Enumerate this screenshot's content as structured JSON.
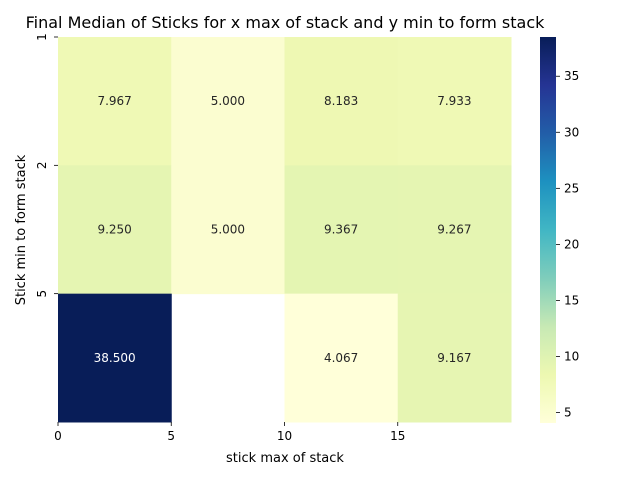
{
  "chart_data": {
    "type": "heatmap",
    "title": "Final Median of Sticks for x max of stack and y min to form stack",
    "xlabel": "stick max of stack",
    "ylabel": "Stick min to form stack",
    "x_tick_labels": [
      "0",
      "5",
      "10",
      "15"
    ],
    "y_tick_labels": [
      "1",
      "2",
      "5"
    ],
    "rows": [
      {
        "values": [
          7.967,
          5.0,
          8.183,
          7.933
        ],
        "labels": [
          "7.967",
          "5.000",
          "8.183",
          "7.933"
        ]
      },
      {
        "values": [
          9.25,
          5.0,
          9.367,
          9.267
        ],
        "labels": [
          "9.250",
          "5.000",
          "9.367",
          "9.267"
        ]
      },
      {
        "values": [
          38.5,
          null,
          4.067,
          9.167
        ],
        "labels": [
          "38.500",
          "",
          "4.067",
          "9.167"
        ]
      }
    ],
    "colorbar": {
      "colormap": "YlGnBu",
      "vmin": 4.067,
      "vmax": 38.5,
      "ticks": [
        "5",
        "10",
        "15",
        "20",
        "25",
        "30",
        "35"
      ]
    }
  }
}
